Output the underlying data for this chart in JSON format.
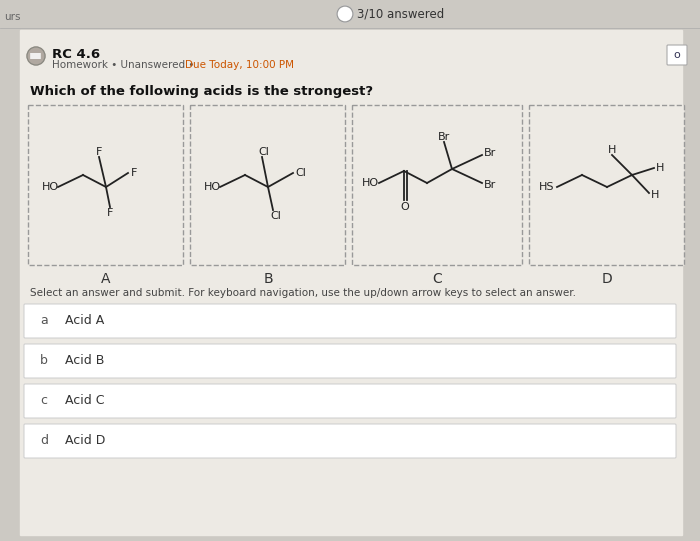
{
  "bg_color": "#ccc9c3",
  "panel_color": "#edeae4",
  "white_color": "#f0ede8",
  "title": "RC 4.6",
  "subtitle_gray": "Homework • Unanswered • ",
  "subtitle_orange": "Due Today, 10:00 PM",
  "progress": "3/10 answered",
  "question": "Which of the following acids is the strongest?",
  "instruction": "Select an answer and submit. For keyboard navigation, use the up/down arrow keys to select an answer.",
  "option_letters": [
    "a",
    "b",
    "c",
    "d"
  ],
  "option_texts": [
    "Acid A",
    "Acid B",
    "Acid C",
    "Acid D"
  ],
  "acid_labels": [
    "A",
    "B",
    "C",
    "D"
  ],
  "line_color": "#222222",
  "text_color": "#222222",
  "box_edge_color": "#999999",
  "option_edge_color": "#cccccc"
}
